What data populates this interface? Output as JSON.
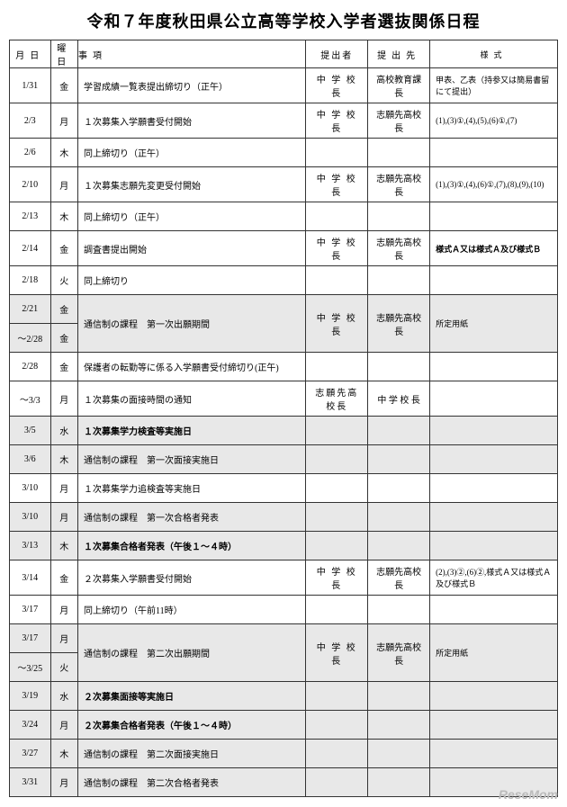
{
  "title": "令和７年度秋田県公立高等学校入学者選抜関係日程",
  "headers": {
    "date": "月日",
    "day": "曜日",
    "item": "事項",
    "submitter": "提出者",
    "destination": "提出先",
    "form": "様式"
  },
  "rows": [
    {
      "date": "1/31",
      "day": "金",
      "item": "学習成績一覧表提出締切り（正午）",
      "sub": "中 学 校 長",
      "dest": "高校教育課長",
      "form": "甲表、乙表（持参又は簡易書留にて提出）",
      "shaded": false
    },
    {
      "date": "2/3",
      "day": "月",
      "item": "１次募集入学願書受付開始",
      "sub": "中 学 校 長",
      "dest": "志願先高校長",
      "form": "(1),(3)①,(4),(5),(6)①,(7)",
      "shaded": false
    },
    {
      "date": "2/6",
      "day": "木",
      "item": "同上締切り（正午）",
      "sub": "",
      "dest": "",
      "form": "",
      "shaded": false
    },
    {
      "date": "2/10",
      "day": "月",
      "item": "１次募集志願先変更受付開始",
      "sub": "中 学 校 長",
      "dest": "志願先高校長",
      "form": "(1),(3)①,(4),(6)①,(7),(8),(9),(10)",
      "shaded": false
    },
    {
      "date": "2/13",
      "day": "木",
      "item": "同上締切り（正午）",
      "sub": "",
      "dest": "",
      "form": "",
      "shaded": false
    },
    {
      "date": "2/14",
      "day": "金",
      "item": "調査書提出開始",
      "sub": "中 学 校 長",
      "dest": "志願先高校長",
      "form": "様式Ａ又は様式Ａ及び様式Ｂ",
      "shaded": false,
      "formBold": true
    },
    {
      "date": "2/18",
      "day": "火",
      "item": "同上締切り",
      "sub": "",
      "dest": "",
      "form": "",
      "shaded": false
    }
  ],
  "merged1": {
    "date1": "2/21",
    "day1": "金",
    "date2": "～2/28",
    "day2": "金",
    "item": "通信制の課程　第一次出願期間",
    "sub": "中 学 校 長",
    "dest": "志願先高校長",
    "form": "所定用紙"
  },
  "rows2": [
    {
      "date": "2/28",
      "day": "金",
      "item": "保護者の転勤等に係る入学願書受付締切り(正午)",
      "sub": "",
      "dest": "",
      "form": "",
      "shaded": false
    },
    {
      "date": "～3/3",
      "day": "月",
      "item": "１次募集の面接時間の通知",
      "sub": "志願先高校長",
      "dest": "中 学 校 長",
      "form": "",
      "shaded": false
    },
    {
      "date": "3/5",
      "day": "水",
      "item": "１次募集学力検査等実施日",
      "sub": "",
      "dest": "",
      "form": "",
      "shaded": true,
      "bold": true
    },
    {
      "date": "3/6",
      "day": "木",
      "item": "通信制の課程　第一次面接実施日",
      "sub": "",
      "dest": "",
      "form": "",
      "shaded": true
    },
    {
      "date": "3/10",
      "day": "月",
      "item": "１次募集学力追検査等実施日",
      "sub": "",
      "dest": "",
      "form": "",
      "shaded": false
    },
    {
      "date": "3/10",
      "day": "月",
      "item": "通信制の課程　第一次合格者発表",
      "sub": "",
      "dest": "",
      "form": "",
      "shaded": true
    },
    {
      "date": "3/13",
      "day": "木",
      "item": "１次募集合格者発表（午後１～４時）",
      "sub": "",
      "dest": "",
      "form": "",
      "shaded": true,
      "bold": true
    },
    {
      "date": "3/14",
      "day": "金",
      "item": "２次募集入学願書受付開始",
      "sub": "中 学 校 長",
      "dest": "志願先高校長",
      "form": "(2),(3)②,(6)②,様式Ａ又は様式Ａ及び様式Ｂ",
      "shaded": false
    },
    {
      "date": "3/17",
      "day": "月",
      "item": "同上締切り（午前11時）",
      "sub": "",
      "dest": "",
      "form": "",
      "shaded": false
    }
  ],
  "merged2": {
    "date1": "3/17",
    "day1": "月",
    "date2": "～3/25",
    "day2": "火",
    "item": "通信制の課程　第二次出願期間",
    "sub": "中 学 校 長",
    "dest": "志願先高校長",
    "form": "所定用紙"
  },
  "rows3": [
    {
      "date": "3/19",
      "day": "水",
      "item": "２次募集面接等実施日",
      "sub": "",
      "dest": "",
      "form": "",
      "shaded": true,
      "bold": true
    },
    {
      "date": "3/24",
      "day": "月",
      "item": "２次募集合格者発表（午後１～４時）",
      "sub": "",
      "dest": "",
      "form": "",
      "shaded": true,
      "bold": true
    },
    {
      "date": "3/27",
      "day": "木",
      "item": "通信制の課程　第二次面接実施日",
      "sub": "",
      "dest": "",
      "form": "",
      "shaded": true
    },
    {
      "date": "3/31",
      "day": "月",
      "item": "通信制の課程　第二次合格者発表",
      "sub": "",
      "dest": "",
      "form": "",
      "shaded": true
    }
  ],
  "watermark": "ReseMom"
}
